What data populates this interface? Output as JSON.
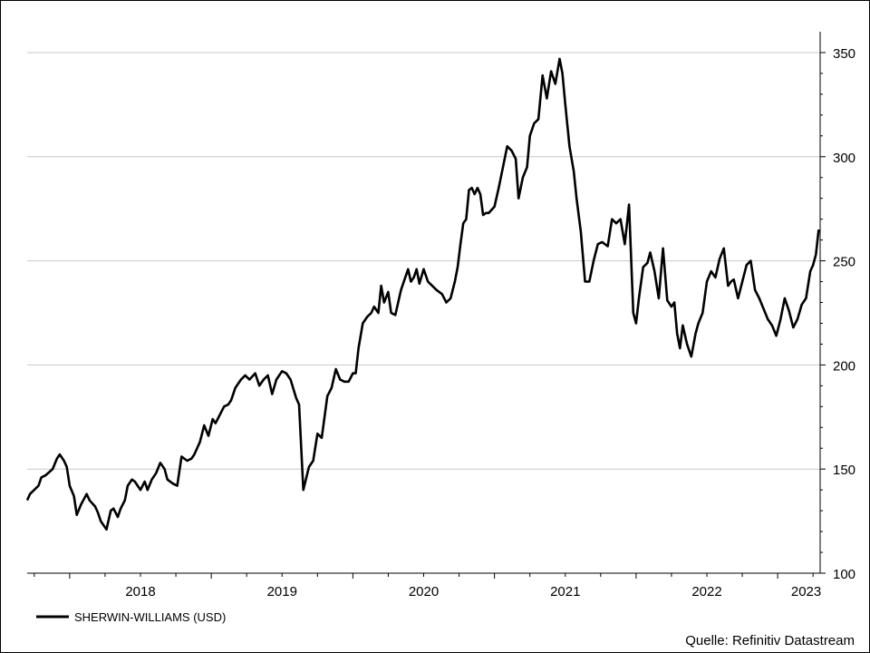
{
  "chart_data": {
    "type": "line",
    "title": "",
    "xlabel": "",
    "ylabel": "",
    "ylim": [
      100,
      360
    ],
    "xlim": [
      2017.7,
      2023.3
    ],
    "x_ticks": [
      2018,
      2019,
      2020,
      2021,
      2022,
      2023
    ],
    "x_tick_labels": [
      "2018",
      "2019",
      "2020",
      "2021",
      "2022",
      "2023"
    ],
    "y_ticks": [
      100,
      150,
      200,
      250,
      300,
      350
    ],
    "y_tick_labels": [
      "100",
      "150",
      "200",
      "250",
      "300",
      "350"
    ],
    "grid": "horizontal",
    "legend_position": "bottom-left",
    "series": [
      {
        "name": "SHERWIN-WILLIAMS (USD)",
        "color": "#000000",
        "x": [
          2017.7,
          2017.72,
          2017.78,
          2017.8,
          2017.83,
          2017.88,
          2017.91,
          2017.93,
          2017.96,
          2017.98,
          2018.0,
          2018.03,
          2018.05,
          2018.08,
          2018.12,
          2018.14,
          2018.18,
          2018.2,
          2018.22,
          2018.26,
          2018.29,
          2018.31,
          2018.34,
          2018.36,
          2018.39,
          2018.41,
          2018.44,
          2018.46,
          2018.48,
          2018.5,
          2018.53,
          2018.55,
          2018.58,
          2018.61,
          2018.64,
          2018.67,
          2018.69,
          2018.73,
          2018.76,
          2018.79,
          2018.83,
          2018.86,
          2018.88,
          2018.92,
          2018.95,
          2018.98,
          2019.01,
          2019.03,
          2019.06,
          2019.09,
          2019.12,
          2019.14,
          2019.17,
          2019.21,
          2019.24,
          2019.27,
          2019.31,
          2019.34,
          2019.37,
          2019.4,
          2019.43,
          2019.46,
          2019.5,
          2019.53,
          2019.56,
          2019.6,
          2019.62,
          2019.65,
          2019.69,
          2019.72,
          2019.75,
          2019.78,
          2019.8,
          2019.82,
          2019.85,
          2019.88,
          2019.91,
          2019.94,
          2019.97,
          2020.0,
          2020.02,
          2020.04,
          2020.07,
          2020.1,
          2020.13,
          2020.15,
          2020.18,
          2020.2,
          2020.22,
          2020.25,
          2020.27,
          2020.3,
          2020.34,
          2020.37,
          2020.39,
          2020.41,
          2020.43,
          2020.45,
          2020.47,
          2020.5,
          2020.53,
          2020.56,
          2020.59,
          2020.63,
          2020.66,
          2020.69,
          2020.72,
          2020.74,
          2020.76,
          2020.78,
          2020.8,
          2020.82,
          2020.84,
          2020.86,
          2020.88,
          2020.9,
          2020.92,
          2020.94,
          2020.96,
          2021.0,
          2021.03,
          2021.06,
          2021.09,
          2021.12,
          2021.15,
          2021.17,
          2021.2,
          2021.23,
          2021.25,
          2021.28,
          2021.31,
          2021.34,
          2021.37,
          2021.4,
          2021.43,
          2021.46,
          2021.48,
          2021.5,
          2021.53,
          2021.56,
          2021.58,
          2021.61,
          2021.64,
          2021.67,
          2021.7,
          2021.73,
          2021.76,
          2021.8,
          2021.83,
          2021.86,
          2021.89,
          2021.92,
          2021.95,
          2021.98,
          2022.0,
          2022.02,
          2022.05,
          2022.08,
          2022.1,
          2022.13,
          2022.16,
          2022.19,
          2022.22,
          2022.25,
          2022.27,
          2022.29,
          2022.31,
          2022.33,
          2022.36,
          2022.39,
          2022.42,
          2022.44,
          2022.47,
          2022.5,
          2022.53,
          2022.56,
          2022.59,
          2022.62,
          2022.65,
          2022.67,
          2022.69,
          2022.72,
          2022.75,
          2022.78,
          2022.81,
          2022.84,
          2022.87,
          2022.9,
          2022.93,
          2022.96,
          2022.99,
          2023.02,
          2023.05,
          2023.08,
          2023.11,
          2023.14,
          2023.17,
          2023.2,
          2023.23,
          2023.25,
          2023.27,
          2023.29
        ],
        "values": [
          135,
          138,
          142,
          146,
          147,
          150,
          155,
          157,
          154,
          151,
          142,
          137,
          128,
          133,
          138,
          135,
          132,
          129,
          125,
          121,
          130,
          131,
          127,
          131,
          135,
          142,
          145,
          144,
          142,
          140,
          144,
          140,
          145,
          148,
          153,
          150,
          145,
          143,
          142,
          156,
          154,
          155,
          157,
          163,
          171,
          166,
          174,
          172,
          176,
          180,
          181,
          183,
          189,
          193,
          195,
          193,
          196,
          190,
          193,
          195,
          186,
          193,
          197,
          196,
          193,
          184,
          181,
          140,
          151,
          154,
          167,
          165,
          175,
          185,
          189,
          198,
          193,
          192,
          192,
          196,
          196,
          208,
          220,
          223,
          225,
          228,
          225,
          238,
          230,
          235,
          225,
          224,
          236,
          242,
          246,
          240,
          242,
          246,
          239,
          246,
          240,
          238,
          236,
          234,
          230,
          232,
          240,
          247,
          258,
          268,
          270,
          284,
          285,
          282,
          285,
          282,
          272,
          273,
          273,
          276,
          285,
          295,
          305,
          303,
          299,
          280,
          290,
          295,
          310,
          316,
          318,
          339,
          328,
          341,
          335,
          347,
          340,
          325,
          305,
          293,
          280,
          264,
          240,
          240,
          250,
          258,
          259,
          257,
          270,
          268,
          270,
          258,
          277,
          225,
          220,
          232,
          247,
          249,
          254,
          245,
          232,
          256,
          231,
          228,
          230,
          215,
          208,
          219,
          210,
          204,
          215,
          220,
          225,
          240,
          245,
          242,
          251,
          256,
          238,
          240,
          241,
          232,
          240,
          248,
          250,
          236,
          232,
          227,
          222,
          219,
          214,
          222,
          232,
          226,
          218,
          222,
          229,
          232,
          245,
          248,
          253,
          265
        ]
      }
    ],
    "legend_label": "SHERWIN-WILLIAMS (USD)",
    "source": "Quelle: Refinitiv Datastream"
  }
}
